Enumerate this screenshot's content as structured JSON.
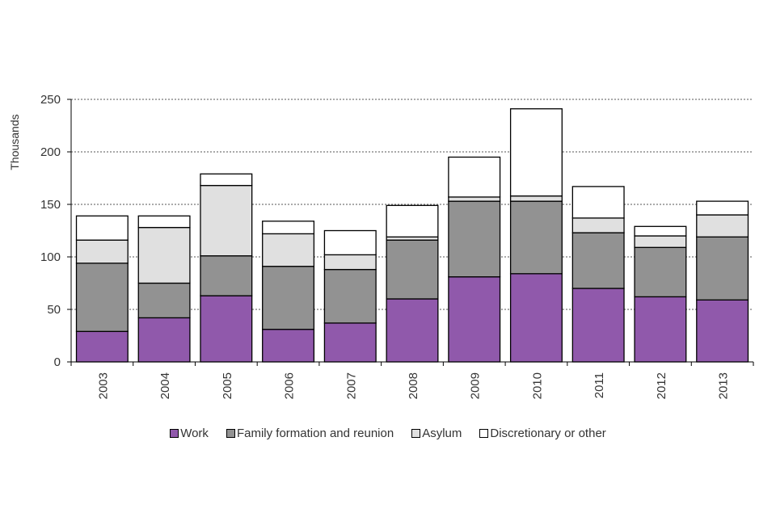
{
  "chart_data": {
    "type": "bar",
    "stacked": true,
    "title": "",
    "xlabel": "",
    "ylabel": "Thousands",
    "ylim": [
      0,
      250
    ],
    "yticks": [
      0,
      50,
      100,
      150,
      200,
      250
    ],
    "grid": true,
    "legend_position": "bottom",
    "categories": [
      "2003",
      "2004",
      "2005",
      "2006",
      "2007",
      "2008",
      "2009",
      "2010",
      "2011",
      "2012",
      "2013"
    ],
    "series": [
      {
        "name": "Work",
        "color": "#9059ab",
        "values": [
          29,
          42,
          63,
          31,
          37,
          60,
          81,
          84,
          70,
          62,
          59
        ]
      },
      {
        "name": "Family formation and reunion",
        "color": "#929292",
        "values": [
          65,
          33,
          38,
          60,
          51,
          56,
          72,
          69,
          53,
          47,
          60
        ]
      },
      {
        "name": "Asylum",
        "color": "#e0e0e0",
        "values": [
          22,
          53,
          67,
          31,
          14,
          3,
          4,
          5,
          14,
          11,
          21
        ]
      },
      {
        "name": "Discretionary or other",
        "color": "#ffffff",
        "values": [
          23,
          11,
          11,
          12,
          23,
          30,
          38,
          83,
          30,
          9,
          13
        ]
      }
    ]
  }
}
